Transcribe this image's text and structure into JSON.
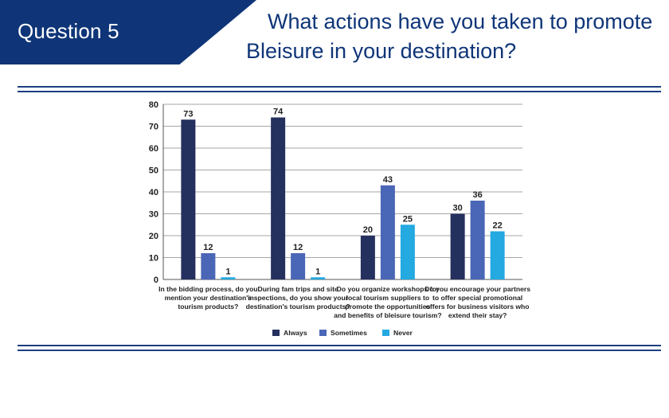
{
  "header": {
    "badge": "Question 5",
    "title_line1": "What actions have you taken to promote",
    "title_line2": "Bleisure in your destination?"
  },
  "colors": {
    "brand_navy": "#0f3578",
    "title": "#0f3578",
    "rules": "#1d3f82",
    "grid": "#a6a6a6"
  },
  "chart_data": {
    "type": "bar",
    "categories": [
      [
        "In the bidding process, do you",
        "mention your destination's",
        "tourism products?"
      ],
      [
        "During fam trips and site",
        "inspections, do you show your",
        "destination's tourism products?"
      ],
      [
        "Do you organize workshops for",
        "local tourism suppliers to",
        "promote the opportunities",
        "and benefits of bleisure tourism?"
      ],
      [
        "Do you encourage your partners",
        "to offer special promotional",
        "offers for business visitors who",
        "extend their stay?"
      ]
    ],
    "series": [
      {
        "name": "Always",
        "color": "#24305e",
        "values": [
          73,
          74,
          20,
          30
        ]
      },
      {
        "name": "Sometimes",
        "color": "#4a66b6",
        "values": [
          12,
          12,
          43,
          36
        ]
      },
      {
        "name": "Never",
        "color": "#24a9e1",
        "values": [
          1,
          1,
          25,
          22
        ]
      }
    ],
    "ylim": [
      0,
      80
    ],
    "yticks": [
      0,
      10,
      20,
      30,
      40,
      50,
      60,
      70,
      80
    ],
    "grid": true,
    "legend": "bottom-center",
    "data_labels": true
  }
}
